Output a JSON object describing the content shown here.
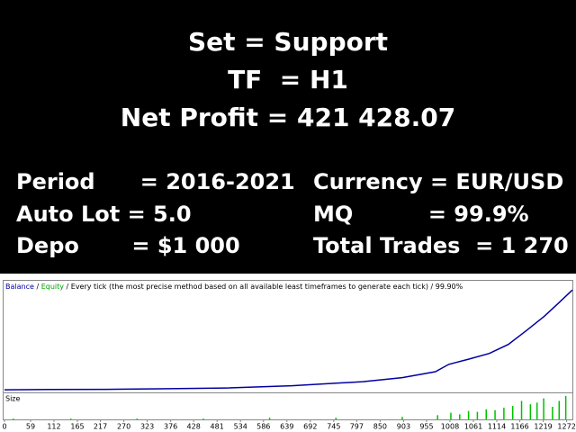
{
  "header": {
    "lines": [
      "Set = Support",
      "TF  = H1",
      "Net Profit = 421 428.07"
    ]
  },
  "stats": {
    "left": [
      "Period      = 2016-2021",
      "Auto Lot = 5.0",
      "Depo       = $1 000"
    ],
    "right": [
      "Currency = EUR/USD",
      "MQ          = 99.9%",
      "Total Trades  = 1 270"
    ]
  },
  "chart_data": {
    "type": "line",
    "subtitle": "Every tick (the most precise method based on all available least timeframes to generate each tick) / 99.90%",
    "equity_label": "Equity",
    "x": [
      0,
      100,
      230,
      350,
      500,
      650,
      810,
      900,
      975,
      1005,
      1050,
      1097,
      1140,
      1180,
      1221,
      1250,
      1285
    ],
    "series": [
      {
        "name": "Balance",
        "color": "#0000a0",
        "values": [
          1000,
          2000,
          3000,
          5000,
          8600,
          18000,
          35000,
          52000,
          77000,
          108000,
          130000,
          154000,
          192000,
          249000,
          310000,
          360000,
          421428
        ]
      }
    ],
    "xlim": [
      0,
      1285
    ],
    "ylim": [
      -10000,
      460000
    ],
    "xticks": [
      0,
      59,
      112,
      165,
      217,
      270,
      323,
      376,
      428,
      481,
      534,
      586,
      639,
      692,
      745,
      797,
      850,
      903,
      955,
      1008,
      1061,
      1114,
      1166,
      1219,
      1272
    ],
    "size": {
      "name": "Size",
      "color": "#00c000",
      "ylim": [
        0,
        30
      ],
      "x": [
        20,
        150,
        300,
        450,
        600,
        750,
        900,
        980,
        1010,
        1030,
        1050,
        1070,
        1090,
        1110,
        1130,
        1150,
        1170,
        1190,
        1205,
        1220,
        1240,
        1255,
        1270
      ],
      "values": [
        1,
        1,
        1,
        1,
        2,
        2,
        3,
        5,
        8,
        6,
        10,
        9,
        12,
        11,
        14,
        16,
        22,
        18,
        20,
        25,
        15,
        22,
        28
      ]
    }
  }
}
